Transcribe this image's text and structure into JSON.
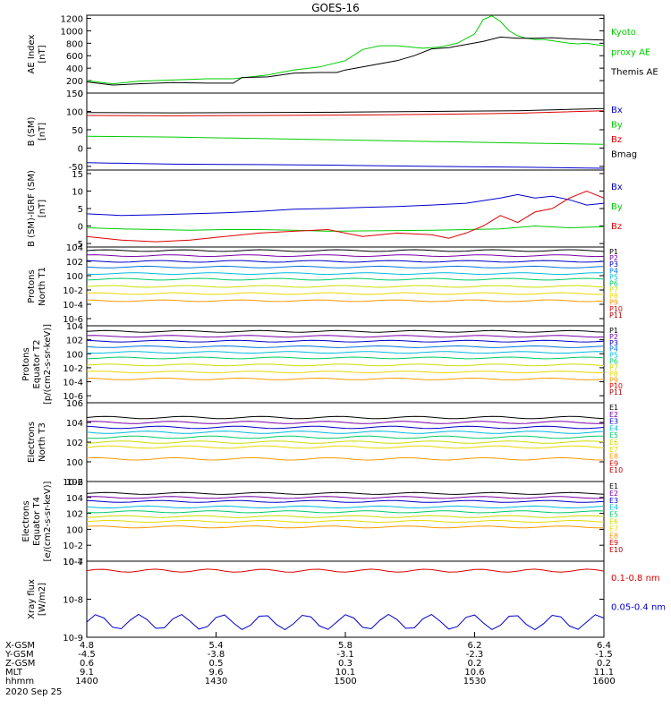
{
  "title": "GOES-16",
  "date": "2020 Sep 25",
  "colors": {
    "black": "#000000",
    "red": "#dd0000",
    "green": "#00cc00",
    "blue": "#0000cc",
    "cyan": "#00bbdd",
    "yellow": "#e8d800",
    "orange": "#ff9900",
    "purple": "#7a00a8",
    "darkred": "#aa0000"
  },
  "ephemeris": {
    "rows": [
      {
        "label": "X-GSM",
        "values": [
          "4.8",
          "5.4",
          "5.8",
          "6.2",
          "6.4"
        ]
      },
      {
        "label": "Y-GSM",
        "values": [
          "-4.5",
          "-3.8",
          "-3.1",
          "-2.3",
          "-1.5"
        ]
      },
      {
        "label": "Z-GSM",
        "values": [
          "0.6",
          "0.5",
          "0.3",
          "0.2",
          "0.2"
        ]
      },
      {
        "label": "MLT",
        "values": [
          "9.1",
          "9.6",
          "10.1",
          "10.6",
          "11.1"
        ]
      },
      {
        "label": "hhmm",
        "values": [
          "1400",
          "1430",
          "1500",
          "1530",
          "1600"
        ]
      }
    ]
  },
  "chart_data": [
    {
      "type": "line",
      "id": "ae",
      "ylabel": [
        "AE Index",
        "[nT]"
      ],
      "ytick_labels": [
        "0",
        "200",
        "400",
        "600",
        "800",
        "1000",
        "1200"
      ],
      "ylim": [
        0,
        1250
      ],
      "legend": [
        {
          "label": "Kyoto",
          "color": "#00cc00"
        },
        {
          "label": "proxy AE",
          "color": "#00cc00"
        },
        {
          "label": "Themis AE",
          "color": "#000000"
        }
      ],
      "series": [
        {
          "name": "Kyoto",
          "color": "#00cc00",
          "values": [
            [
              0,
              200
            ],
            [
              3,
              150
            ],
            [
              6,
              190
            ],
            [
              10,
              210
            ],
            [
              14,
              230
            ],
            [
              17,
              230
            ],
            [
              21,
              290
            ],
            [
              24,
              370
            ],
            [
              27,
              420
            ],
            [
              30,
              520
            ],
            [
              32,
              700
            ],
            [
              34,
              760
            ],
            [
              36,
              760
            ],
            [
              39,
              720
            ],
            [
              41,
              740
            ],
            [
              43,
              800
            ],
            [
              45,
              950
            ],
            [
              46,
              1180
            ],
            [
              47,
              1240
            ],
            [
              48,
              1150
            ],
            [
              49,
              1000
            ],
            [
              50,
              920
            ],
            [
              51,
              880
            ],
            [
              52,
              860
            ],
            [
              53,
              860
            ],
            [
              54,
              840
            ],
            [
              55,
              820
            ],
            [
              56,
              800
            ],
            [
              57,
              790
            ],
            [
              58,
              800
            ],
            [
              59,
              780
            ],
            [
              60,
              760
            ]
          ]
        },
        {
          "name": "Themis AE",
          "color": "#000000",
          "values": [
            [
              0,
              180
            ],
            [
              3,
              130
            ],
            [
              6,
              150
            ],
            [
              10,
              170
            ],
            [
              14,
              160
            ],
            [
              17,
              160
            ],
            [
              18,
              250
            ],
            [
              21,
              260
            ],
            [
              24,
              320
            ],
            [
              27,
              330
            ],
            [
              29,
              330
            ],
            [
              30,
              370
            ],
            [
              32,
              420
            ],
            [
              34,
              470
            ],
            [
              36,
              520
            ],
            [
              38,
              600
            ],
            [
              40,
              710
            ],
            [
              42,
              730
            ],
            [
              44,
              780
            ],
            [
              46,
              830
            ],
            [
              48,
              900
            ],
            [
              50,
              880
            ],
            [
              52,
              880
            ],
            [
              54,
              890
            ],
            [
              56,
              870
            ],
            [
              58,
              860
            ],
            [
              60,
              850
            ]
          ]
        }
      ]
    },
    {
      "type": "line",
      "id": "b",
      "ylabel": [
        "B (SM)",
        "[nT]"
      ],
      "ytick_labels": [
        "-50",
        "0",
        "50",
        "100",
        "150"
      ],
      "ylim": [
        -60,
        150
      ],
      "legend": [
        {
          "label": "Bx",
          "color": "#0000cc"
        },
        {
          "label": "By",
          "color": "#00cc00"
        },
        {
          "label": "Bz",
          "color": "#dd0000"
        },
        {
          "label": "Bmag",
          "color": "#000000"
        }
      ],
      "series": [
        {
          "name": "Bmag",
          "color": "#000000",
          "values": [
            [
              0,
              97
            ],
            [
              10,
              96
            ],
            [
              20,
              97
            ],
            [
              30,
              98
            ],
            [
              40,
              100
            ],
            [
              50,
              102
            ],
            [
              60,
              108
            ]
          ]
        },
        {
          "name": "Bz",
          "color": "#dd0000",
          "values": [
            [
              0,
              89
            ],
            [
              10,
              88
            ],
            [
              20,
              89
            ],
            [
              30,
              90
            ],
            [
              40,
              92
            ],
            [
              50,
              95
            ],
            [
              60,
              102
            ]
          ]
        },
        {
          "name": "By",
          "color": "#00cc00",
          "values": [
            [
              0,
              32
            ],
            [
              10,
              30
            ],
            [
              20,
              26
            ],
            [
              30,
              22
            ],
            [
              40,
              18
            ],
            [
              50,
              14
            ],
            [
              60,
              10
            ]
          ]
        },
        {
          "name": "Bx",
          "color": "#0000cc",
          "values": [
            [
              0,
              -40
            ],
            [
              10,
              -44
            ],
            [
              20,
              -45
            ],
            [
              30,
              -47
            ],
            [
              40,
              -50
            ],
            [
              50,
              -52
            ],
            [
              60,
              -55
            ]
          ]
        }
      ]
    },
    {
      "type": "line",
      "id": "dbrf",
      "ylabel": [
        "B (SM)-IGRF (SM)",
        "[nT]"
      ],
      "ytick_labels": [
        "-5",
        "0",
        "5",
        "10",
        "15"
      ],
      "ylim": [
        -6,
        16
      ],
      "legend": [
        {
          "label": "Bx",
          "color": "#0000cc"
        },
        {
          "label": "By",
          "color": "#00cc00"
        },
        {
          "label": "Bz",
          "color": "#dd0000"
        }
      ],
      "series": [
        {
          "name": "Bx",
          "color": "#0000cc",
          "values": [
            [
              0,
              3.5
            ],
            [
              4,
              3
            ],
            [
              8,
              3.2
            ],
            [
              12,
              3.5
            ],
            [
              16,
              3.8
            ],
            [
              20,
              4.2
            ],
            [
              24,
              4.8
            ],
            [
              28,
              5
            ],
            [
              32,
              5.3
            ],
            [
              36,
              5.6
            ],
            [
              40,
              6
            ],
            [
              44,
              6.5
            ],
            [
              48,
              8
            ],
            [
              50,
              9
            ],
            [
              52,
              8
            ],
            [
              54,
              8.5
            ],
            [
              56,
              7.5
            ],
            [
              58,
              6
            ],
            [
              60,
              6.5
            ]
          ]
        },
        {
          "name": "By",
          "color": "#00cc00",
          "values": [
            [
              0,
              -0.5
            ],
            [
              4,
              -0.8
            ],
            [
              8,
              -1
            ],
            [
              12,
              -1.2
            ],
            [
              16,
              -1
            ],
            [
              20,
              -1
            ],
            [
              24,
              -1.2
            ],
            [
              28,
              -1.5
            ],
            [
              32,
              -1.4
            ],
            [
              36,
              -1.3
            ],
            [
              40,
              -1.2
            ],
            [
              44,
              -1
            ],
            [
              48,
              -0.8
            ],
            [
              52,
              0
            ],
            [
              56,
              -0.5
            ],
            [
              60,
              -0.2
            ]
          ]
        },
        {
          "name": "Bz",
          "color": "#dd0000",
          "values": [
            [
              0,
              -3
            ],
            [
              4,
              -4
            ],
            [
              8,
              -4.5
            ],
            [
              12,
              -4
            ],
            [
              16,
              -3
            ],
            [
              20,
              -2
            ],
            [
              24,
              -1.5
            ],
            [
              28,
              -1
            ],
            [
              32,
              -3
            ],
            [
              36,
              -2
            ],
            [
              40,
              -2.5
            ],
            [
              42,
              -3.5
            ],
            [
              44,
              -2
            ],
            [
              46,
              0
            ],
            [
              48,
              3
            ],
            [
              50,
              1
            ],
            [
              52,
              4
            ],
            [
              54,
              5
            ],
            [
              56,
              8
            ],
            [
              58,
              10
            ],
            [
              60,
              8
            ]
          ]
        }
      ]
    },
    {
      "type": "line",
      "id": "pn",
      "ylabel": [
        "Protons",
        "North T1"
      ],
      "scale": "log",
      "ytick_labels": [
        "10-6",
        "10-4",
        "10-2",
        "100",
        "102",
        "104"
      ],
      "ylim_log10": [
        -7,
        4
      ],
      "legend": [
        "P1",
        "P2",
        "P3",
        "P4",
        "P5",
        "P6",
        "P7",
        "P8",
        "P9",
        "P10",
        "P11"
      ],
      "legend_colors": [
        "#000000",
        "#7a00a8",
        "#0000cc",
        "#0077dd",
        "#00bbdd",
        "#00cc66",
        "#ccdd00",
        "#e8d800",
        "#ff9900",
        "#dd0000",
        "#aa0000"
      ],
      "levels_log10": [
        3.5,
        2.8,
        2.0,
        1.2,
        0.3,
        -0.5,
        -1.5,
        -2.5,
        -3.5
      ]
    },
    {
      "type": "line",
      "id": "pe",
      "ylabel": [
        "Protons",
        "Equator T2",
        "[p/(cm2-s-sr-keV)]"
      ],
      "scale": "log",
      "ytick_labels": [
        "10-6",
        "10-4",
        "10-2",
        "100",
        "102",
        "104"
      ],
      "ylim_log10": [
        -7,
        4
      ],
      "legend": [
        "P1",
        "P2",
        "P3",
        "P4",
        "P5",
        "P6",
        "P7",
        "P8",
        "P9",
        "P10",
        "P11"
      ],
      "legend_colors": [
        "#000000",
        "#7a00a8",
        "#0000cc",
        "#0077dd",
        "#00bbdd",
        "#00cc66",
        "#ccdd00",
        "#e8d800",
        "#ff9900",
        "#dd0000",
        "#aa0000"
      ],
      "levels_log10": [
        3.2,
        2.5,
        1.8,
        1.0,
        0.2,
        -0.6,
        -1.6,
        -2.6,
        -3.6
      ]
    },
    {
      "type": "line",
      "id": "en",
      "ylabel": [
        "Electrons",
        "North T3"
      ],
      "scale": "log",
      "ytick_labels": [
        "10-2",
        "100",
        "102",
        "104",
        "106"
      ],
      "ylim_log10": [
        -2,
        6
      ],
      "legend": [
        "E1",
        "E2",
        "E3",
        "E4",
        "E5",
        "E6",
        "E7",
        "E8",
        "E9",
        "E10"
      ],
      "legend_colors": [
        "#000000",
        "#7a00a8",
        "#0000cc",
        "#00bbdd",
        "#00cc66",
        "#ccdd00",
        "#e8d800",
        "#ff9900",
        "#dd0000",
        "#aa0000"
      ],
      "levels_log10": [
        4.5,
        4.0,
        3.5,
        3.0,
        2.5,
        2.0,
        1.5,
        0.3
      ]
    },
    {
      "type": "line",
      "id": "ee",
      "ylabel": [
        "Electrons",
        "Equator T4",
        "[e/(cm2-s-sr-keV)]"
      ],
      "scale": "log",
      "ytick_labels": [
        "10-4",
        "10-2",
        "100",
        "102",
        "104",
        "106"
      ],
      "ylim_log10": [
        -4,
        6
      ],
      "legend": [
        "E1",
        "E2",
        "E3",
        "E4",
        "E5",
        "E6",
        "E7",
        "E8",
        "E9",
        "E10"
      ],
      "legend_colors": [
        "#000000",
        "#7a00a8",
        "#0000cc",
        "#00bbdd",
        "#00cc66",
        "#ccdd00",
        "#e8d800",
        "#ff9900",
        "#dd0000",
        "#aa0000"
      ],
      "levels_log10": [
        4.5,
        4.0,
        3.5,
        2.8,
        2.2,
        1.6,
        1.0,
        0.3
      ]
    },
    {
      "type": "line",
      "id": "xray",
      "ylabel": [
        "Xray flux",
        "[W/m2]"
      ],
      "scale": "log",
      "ytick_labels": [
        "10-9",
        "10-8",
        "10-7"
      ],
      "ylim_log10": [
        -9,
        -7
      ],
      "legend": [
        {
          "label": "0.1-0.8 nm",
          "color": "#dd0000"
        },
        {
          "label": "0.05-0.4 nm",
          "color": "#0000cc"
        }
      ]
    }
  ]
}
